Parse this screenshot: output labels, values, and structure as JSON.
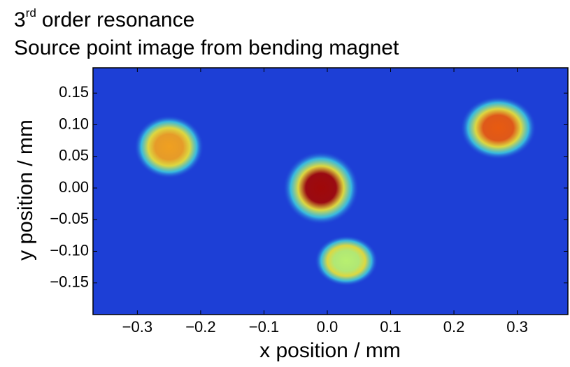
{
  "chart_data": {
    "type": "heatmap",
    "title": [
      "3",
      "rd",
      "order resonance"
    ],
    "subtitle": "Source point image from bending magnet",
    "x_label": "x position / mm",
    "y_label": "y position / mm",
    "xlim": [
      -0.37,
      0.38
    ],
    "ylim": [
      -0.2,
      0.19
    ],
    "xticks": [
      {
        "value": -0.3,
        "label": "−0.3"
      },
      {
        "value": -0.2,
        "label": "−0.2"
      },
      {
        "value": -0.1,
        "label": "−0.1"
      },
      {
        "value": 0,
        "label": "0.0"
      },
      0.1,
      0.2,
      0.3
    ],
    "yticks": [
      {
        "value": -0.15,
        "label": "−0.15"
      },
      {
        "value": -0.1,
        "label": "−0.10"
      },
      {
        "value": -0.05,
        "label": "−0.05"
      },
      {
        "value": 0,
        "label": "0.00"
      },
      0.05,
      {
        "value": 0.1,
        "label": "0.10"
      },
      0.15
    ],
    "background": "#1d3fd6",
    "spots": {
      "x": [
        -0.25,
        -0.01,
        0.27,
        0.03
      ],
      "y": [
        0.065,
        0.0,
        0.095,
        -0.115
      ],
      "rx": [
        0.055,
        0.06,
        0.06,
        0.05
      ],
      "ry": [
        0.05,
        0.058,
        0.05,
        0.04
      ],
      "color": [
        "#f0a020",
        "#a00808",
        "#e85a10",
        "#b8f070"
      ]
    }
  }
}
